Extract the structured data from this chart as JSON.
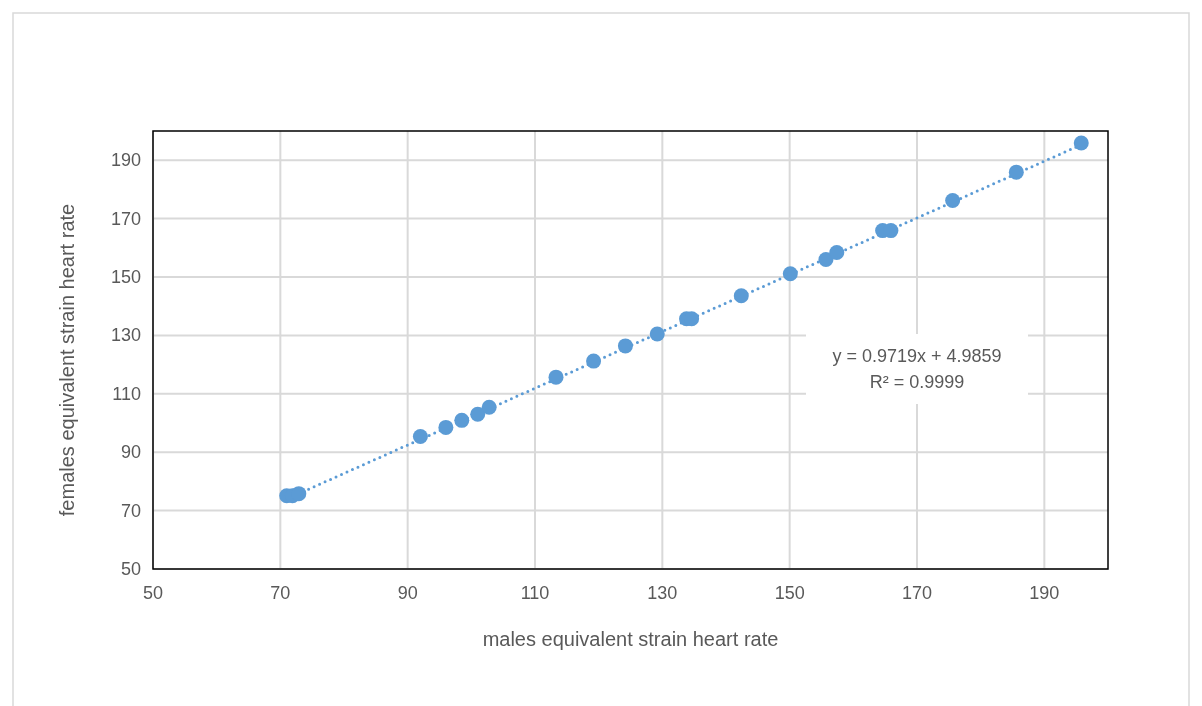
{
  "chart_data": {
    "type": "scatter",
    "xlabel": "males equivalent strain heart rate",
    "ylabel": "females equivalent strain heart rate",
    "xlim": [
      50,
      200
    ],
    "ylim": [
      50,
      200
    ],
    "xticks": [
      50,
      70,
      90,
      110,
      130,
      150,
      170,
      190
    ],
    "yticks": [
      50,
      70,
      90,
      110,
      130,
      150,
      170,
      190
    ],
    "grid": true,
    "series": [
      {
        "color": "#5b9bd5",
        "marker": "circle",
        "x": [
          71.0,
          71.9,
          72.9,
          92.0,
          96.0,
          98.5,
          101.0,
          102.8,
          113.3,
          119.2,
          124.2,
          129.2,
          133.8,
          134.6,
          142.4,
          150.1,
          155.7,
          157.4,
          164.6,
          165.9,
          175.6,
          185.6,
          195.8
        ],
        "values": [
          75.1,
          75.1,
          75.8,
          95.4,
          98.5,
          100.9,
          103.0,
          105.4,
          115.7,
          121.2,
          126.4,
          130.5,
          135.7,
          135.7,
          143.6,
          151.1,
          156.0,
          158.4,
          165.9,
          165.9,
          176.2,
          185.9,
          195.9
        ]
      },
      {
        "type": "line",
        "color": "#5b9bd5",
        "line_style": "dotted",
        "marker": "none",
        "x": [
          71,
          196
        ],
        "values": [
          74.0,
          195.5
        ]
      }
    ],
    "annotations": [
      "y = 0.9719x + 4.9859",
      "R² = 0.9999"
    ]
  }
}
